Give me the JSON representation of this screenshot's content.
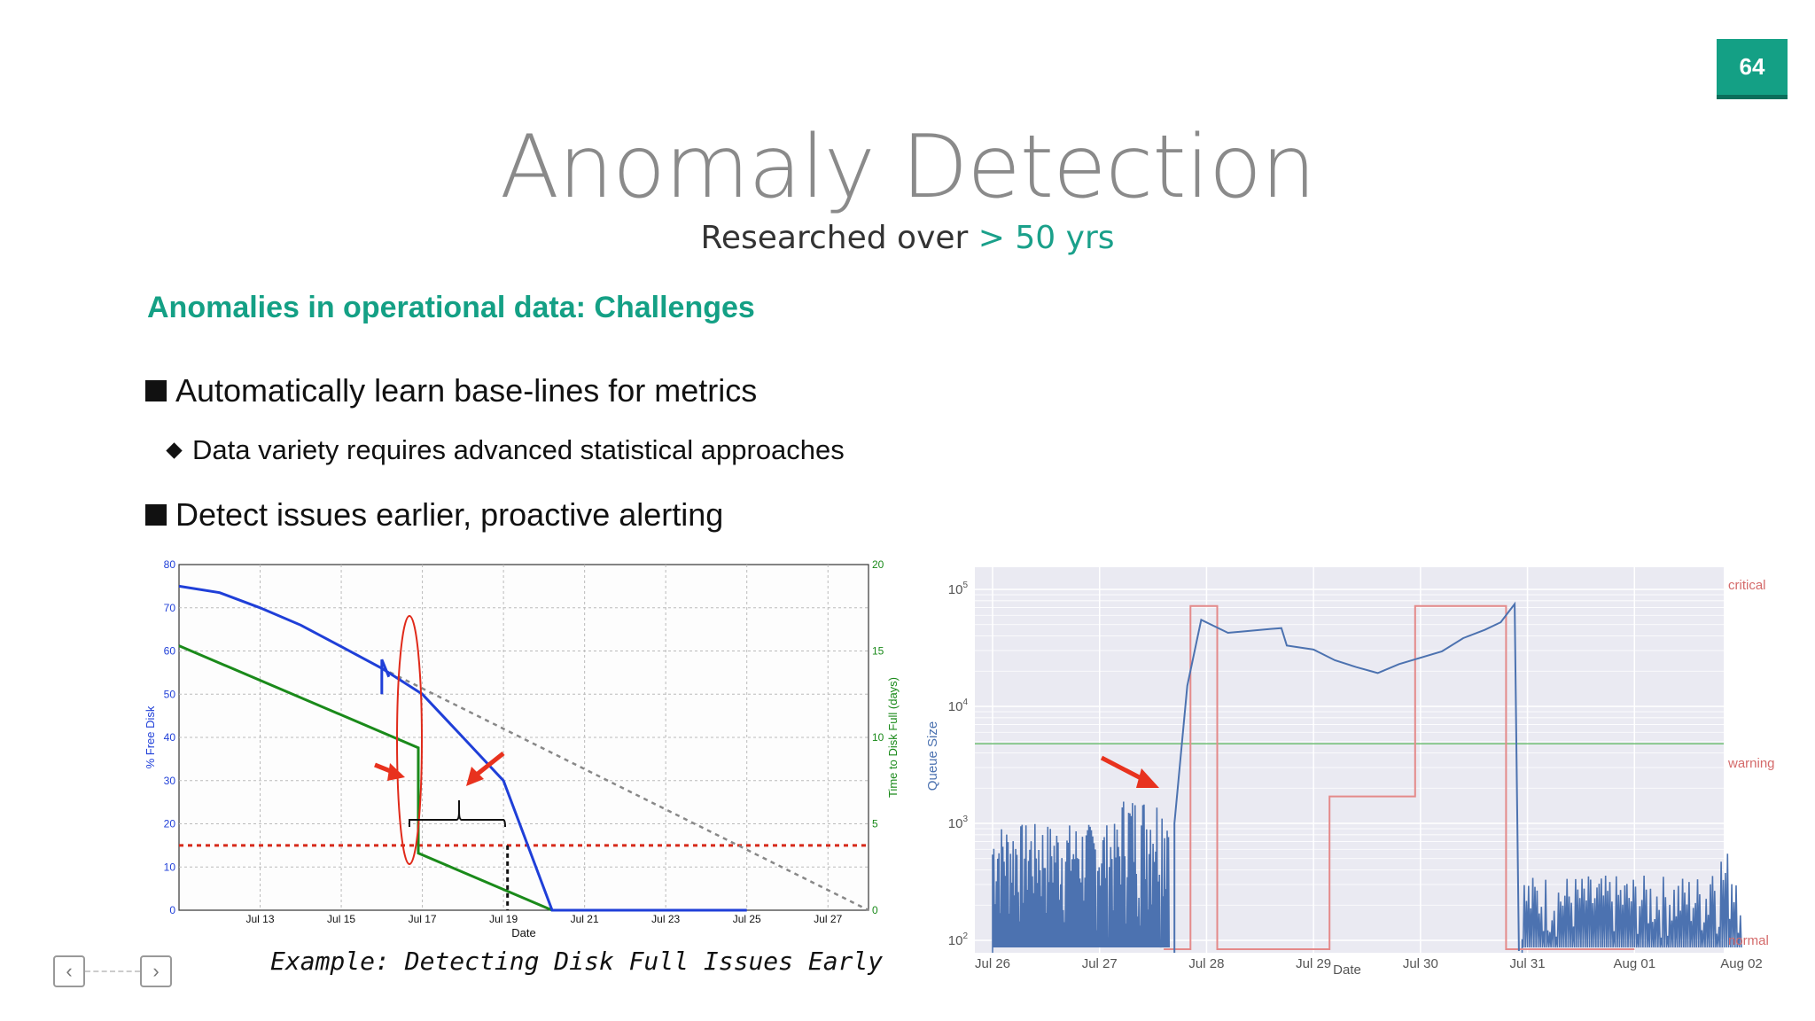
{
  "slide": {
    "page_number": "64",
    "title": "Anomaly Detection",
    "subtitle_main": "Researched over",
    "subtitle_accent": "> 50 yrs",
    "section_heading": "Anomalies in operational data: Challenges",
    "bullets": [
      "Automatically learn base-lines for metrics",
      "Data variety requires advanced statistical approaches",
      "Detect issues earlier, proactive alerting"
    ],
    "caption": "Example: Detecting Disk Full Issues Early"
  },
  "colors": {
    "accent": "#14a085",
    "free_disk_line": "#1f3fd8",
    "time_to_full_line": "#1a8a1a",
    "threshold": "#d62a1a",
    "queue_line": "#4c72b0",
    "severity_line": "#e48a8a"
  },
  "icons": {
    "prev": "chevron-left-icon",
    "next": "chevron-right-icon"
  },
  "chart_data": [
    {
      "type": "line",
      "xlabel": "Date",
      "ylabel": "% Free Disk",
      "ylabel_right": "Time to Disk Full (days)",
      "xticks": [
        "Jul 13",
        "Jul 15",
        "Jul 17",
        "Jul 19",
        "Jul 21",
        "Jul 23",
        "Jul 25",
        "Jul 27"
      ],
      "xlim": [
        "Jul 11",
        "Jul 28"
      ],
      "ylim": [
        0,
        80
      ],
      "ylim_right": [
        0,
        20
      ],
      "yticks": [
        0,
        10,
        20,
        30,
        40,
        50,
        60,
        70,
        80
      ],
      "yticks_right": [
        0,
        5,
        10,
        15,
        20
      ],
      "grid": true,
      "series": [
        {
          "axis": "left",
          "x": [
            "Jul 11",
            "Jul 12",
            "Jul 13",
            "Jul 14",
            "Jul 15",
            "Jul 16",
            "Jul 16.5",
            "Jul 17",
            "Jul 18",
            "Jul 19",
            "Jul 20.2",
            "Jul 22",
            "Jul 25"
          ],
          "y": [
            75,
            73.5,
            70,
            66,
            61,
            56,
            53,
            50,
            40,
            30,
            0,
            0,
            0
          ]
        },
        {
          "axis": "right",
          "x": [
            "Jul 11",
            "Jul 16.9",
            "Jul 16.9",
            "Jul 20.2"
          ],
          "y": [
            15.3,
            9.4,
            3.3,
            0
          ]
        },
        {
          "axis": "left",
          "x": [
            "Jul 16",
            "Jul 28"
          ],
          "y": [
            56,
            0
          ]
        }
      ],
      "threshold": 15
    },
    {
      "type": "line",
      "xlabel": "Date",
      "ylabel": "Queue Size",
      "y_scale": "log",
      "ylim": [
        100,
        100000
      ],
      "yticks": [
        "10^2",
        "10^3",
        "10^4",
        "10^5"
      ],
      "xticks": [
        "Jul 26",
        "Jul 27",
        "Jul 28",
        "Jul 29",
        "Jul 30",
        "Jul 31",
        "Aug 01",
        "Aug 02"
      ],
      "right_labels": [
        "critical",
        "warning",
        "normal"
      ],
      "grid": true,
      "warning_line": 4800,
      "series": [
        {
          "role": "queue-size",
          "x": [
            27.7,
            27.82,
            27.95,
            28.2,
            28.6,
            28.7,
            28.75,
            29.0,
            29.2,
            29.4,
            29.6,
            29.8,
            30.2,
            30.4,
            30.6,
            30.75,
            30.82,
            30.88
          ],
          "y": [
            1000,
            15000,
            55000,
            42000,
            45000,
            48000,
            33000,
            31000,
            25000,
            22000,
            19000,
            23000,
            30000,
            38000,
            44000,
            51000,
            64000,
            75000
          ]
        },
        {
          "role": "severity",
          "x": [
            27.6,
            27.85,
            27.85,
            28.1,
            28.1,
            29.15,
            29.15,
            29.95,
            29.95,
            30.8,
            30.8,
            30.95,
            30.95,
            32.0
          ],
          "y": [
            "normal",
            "normal",
            "critical",
            "critical",
            "normal",
            "normal",
            "warning",
            "warning",
            "critical",
            "critical",
            "normal",
            "normal",
            "normal",
            "normal"
          ]
        }
      ]
    }
  ]
}
